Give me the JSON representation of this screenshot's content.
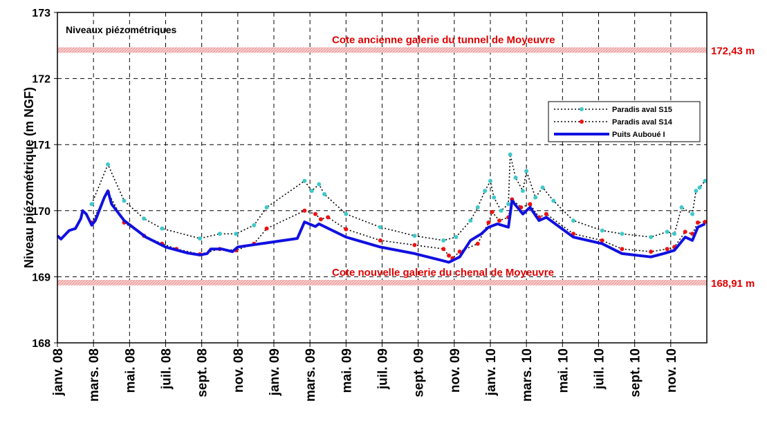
{
  "chart_data": {
    "type": "line",
    "title": "Niveaux piézométriques",
    "ylabel": "Niveau piézométrique (m NGF)",
    "xlim": [
      0,
      36
    ],
    "xticks": [
      {
        "value": 0,
        "label": "janv. 08"
      },
      {
        "value": 2,
        "label": "mars. 08"
      },
      {
        "value": 4,
        "label": "mai. 08"
      },
      {
        "value": 6,
        "label": "juil. 08"
      },
      {
        "value": 8,
        "label": "sept. 08"
      },
      {
        "value": 10,
        "label": "nov. 08"
      },
      {
        "value": 12,
        "label": "janv. 09"
      },
      {
        "value": 14,
        "label": "mars. 09"
      },
      {
        "value": 16,
        "label": "mai. 09"
      },
      {
        "value": 18,
        "label": "juil. 09"
      },
      {
        "value": 20,
        "label": "sept. 09"
      },
      {
        "value": 22,
        "label": "nov. 09"
      },
      {
        "value": 24,
        "label": "janv. 10"
      },
      {
        "value": 26,
        "label": "mars. 10"
      },
      {
        "value": 28,
        "label": "mai. 10"
      },
      {
        "value": 30,
        "label": "juil. 10"
      },
      {
        "value": 32,
        "label": "sept. 10"
      },
      {
        "value": 34,
        "label": "nov. 10"
      }
    ],
    "ylim": [
      168,
      173
    ],
    "yticks": [
      168,
      169,
      170,
      171,
      172,
      173
    ],
    "grid": true,
    "legend": "upper right",
    "reference_lines": [
      {
        "value": 172.43,
        "label": "172,43 m",
        "text": "Cote ancienne galerie du tunnel de Moyeuvre",
        "color": "#e00000"
      },
      {
        "value": 168.91,
        "label": "168,91 m",
        "text": "Cote nouvelle galerie du chenal de Moyeuvre",
        "color": "#e00000"
      }
    ],
    "series": [
      {
        "name": "Paradis aval S15",
        "color": "#40c8c8",
        "style": "dotted-markers",
        "x": [
          1.9,
          2.8,
          3.7,
          4.8,
          5.8,
          7.9,
          9.0,
          9.9,
          10.9,
          11.6,
          13.7,
          14.1,
          14.5,
          14.8,
          16.0,
          17.9,
          19.8,
          21.4,
          22.1,
          22.9,
          23.3,
          23.7,
          24.0,
          24.2,
          24.6,
          25.0,
          25.1,
          25.4,
          25.8,
          26.0,
          26.5,
          26.9,
          27.5,
          28.6,
          30.2,
          31.3,
          32.9,
          33.8,
          34.2,
          34.6,
          35.2,
          35.4,
          35.6,
          35.9
        ],
        "values": [
          170.1,
          170.7,
          170.15,
          169.88,
          169.73,
          169.58,
          169.65,
          169.65,
          169.78,
          170.05,
          170.45,
          170.3,
          170.4,
          170.25,
          169.95,
          169.75,
          169.62,
          169.55,
          169.6,
          169.85,
          170.05,
          170.3,
          170.45,
          170.2,
          170.0,
          170.1,
          170.85,
          170.5,
          170.3,
          170.6,
          170.2,
          170.35,
          170.15,
          169.85,
          169.7,
          169.65,
          169.6,
          169.68,
          169.65,
          170.05,
          169.95,
          170.3,
          170.35,
          170.45
        ]
      },
      {
        "name": "Paradis aval S14",
        "color": "#ee1111",
        "style": "dotted-markers",
        "x": [
          1.9,
          2.8,
          3.7,
          4.8,
          5.8,
          6.6,
          7.9,
          9.0,
          9.9,
          10.9,
          11.6,
          13.7,
          14.3,
          14.6,
          15.0,
          16.0,
          17.9,
          19.8,
          21.4,
          21.7,
          21.9,
          22.3,
          23.3,
          23.9,
          24.1,
          24.5,
          25.0,
          25.2,
          25.7,
          26.2,
          26.7,
          27.1,
          28.6,
          30.2,
          31.3,
          32.9,
          33.8,
          34.2,
          34.8,
          35.2,
          35.5,
          35.9
        ],
        "values": [
          169.82,
          170.28,
          169.82,
          169.62,
          169.5,
          169.42,
          169.34,
          169.42,
          169.4,
          169.5,
          169.73,
          170.0,
          169.95,
          169.87,
          169.9,
          169.72,
          169.55,
          169.48,
          169.42,
          169.32,
          169.28,
          169.38,
          169.5,
          169.82,
          169.98,
          169.85,
          169.9,
          170.17,
          170.05,
          170.1,
          169.9,
          169.95,
          169.65,
          169.55,
          169.42,
          169.38,
          169.42,
          169.45,
          169.68,
          169.65,
          169.82,
          169.83
        ]
      },
      {
        "name": "Puits Auboué I",
        "color": "#1010e0",
        "style": "solid",
        "x": [
          0,
          0.2,
          0.65,
          1.0,
          1.3,
          1.4,
          1.6,
          1.9,
          2.1,
          2.6,
          2.8,
          3.0,
          3.7,
          4.9,
          6.0,
          7.2,
          7.9,
          8.3,
          8.5,
          9.1,
          9.7,
          10.0,
          13.3,
          13.7,
          14.3,
          14.5,
          16.0,
          17.9,
          19.8,
          21.7,
          22.3,
          22.9,
          23.5,
          23.9,
          24.4,
          25.0,
          25.2,
          25.8,
          26.2,
          26.7,
          27.1,
          28.6,
          30.2,
          31.3,
          32.9,
          33.6,
          34.2,
          34.8,
          35.2,
          35.5,
          35.9
        ],
        "values": [
          169.62,
          169.57,
          169.7,
          169.73,
          169.88,
          170.0,
          169.95,
          169.78,
          169.85,
          170.2,
          170.3,
          170.1,
          169.85,
          169.6,
          169.45,
          169.36,
          169.33,
          169.35,
          169.42,
          169.42,
          169.38,
          169.45,
          169.58,
          169.83,
          169.76,
          169.8,
          169.6,
          169.45,
          169.35,
          169.22,
          169.3,
          169.55,
          169.65,
          169.75,
          169.8,
          169.75,
          170.15,
          169.95,
          170.05,
          169.85,
          169.9,
          169.6,
          169.5,
          169.35,
          169.3,
          169.35,
          169.4,
          169.6,
          169.55,
          169.75,
          169.8
        ]
      }
    ]
  }
}
